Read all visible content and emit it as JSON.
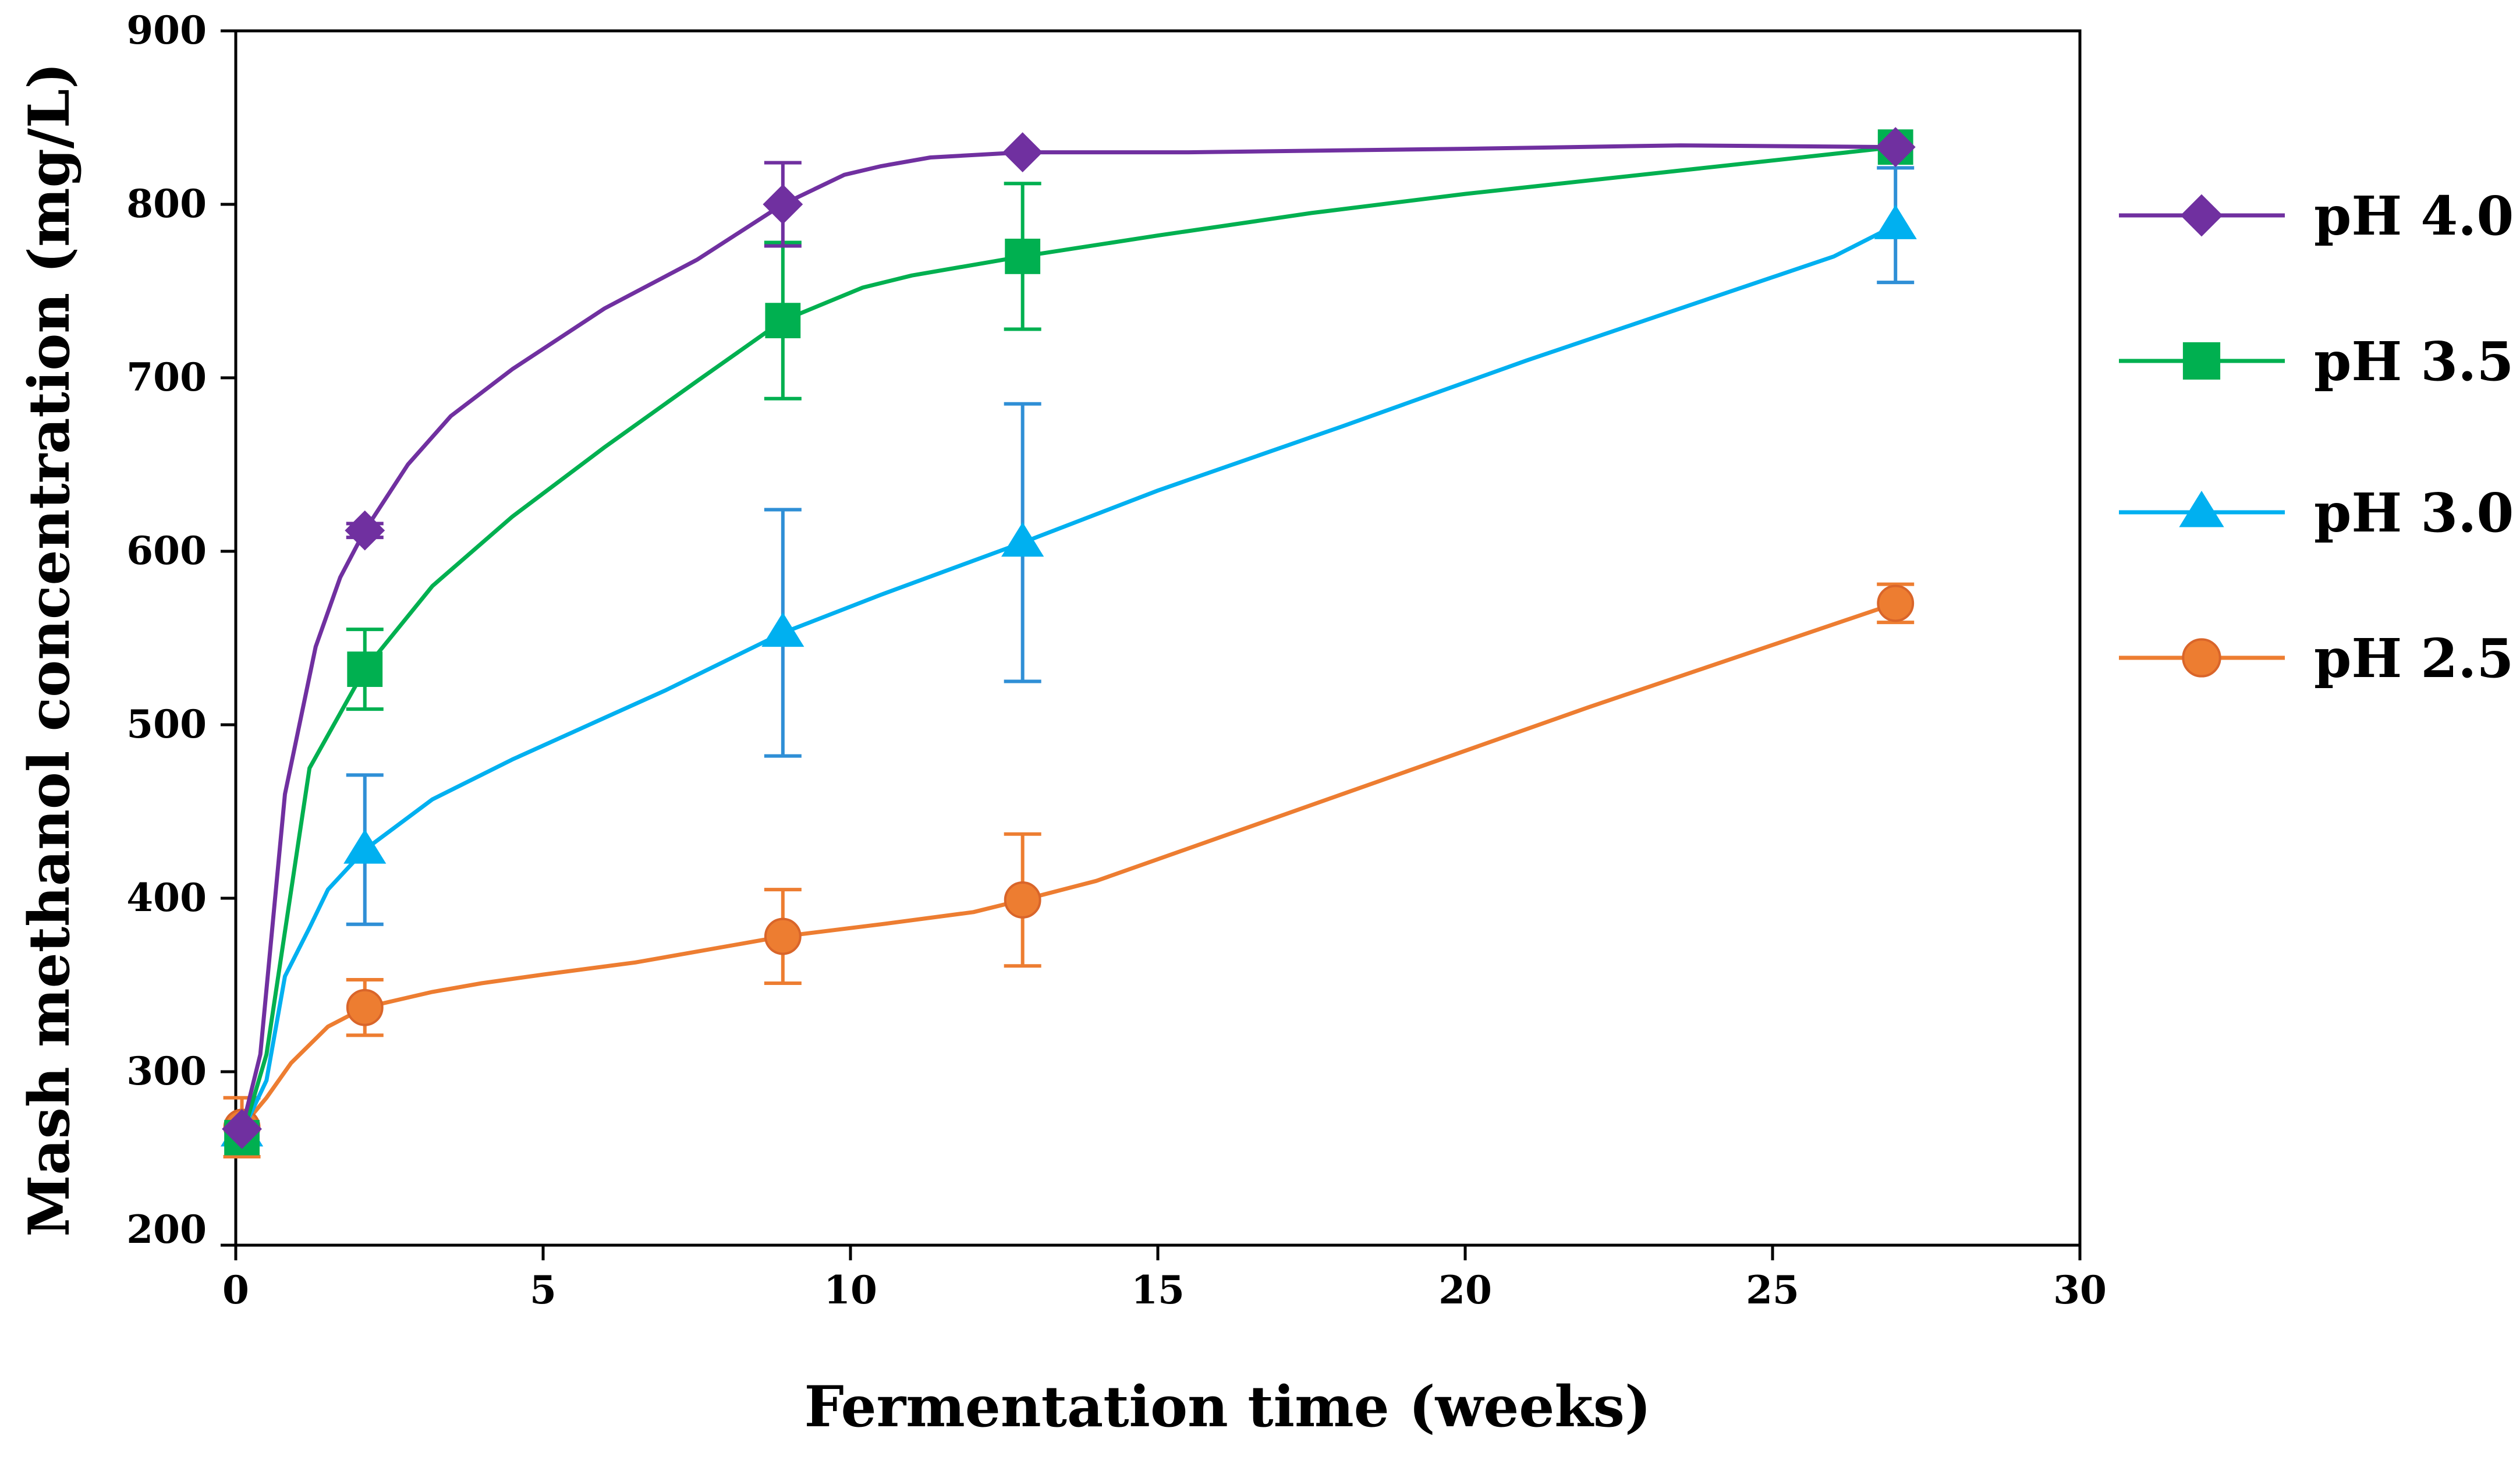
{
  "chart_data": {
    "type": "line",
    "title": "",
    "xlabel": "Fermentation time (weeks)",
    "ylabel": "Mash methanol concentration (mg/L)",
    "xlim": [
      0,
      30
    ],
    "ylim": [
      200,
      900
    ],
    "xticks": [
      0,
      5,
      10,
      15,
      20,
      25,
      30
    ],
    "yticks": [
      200,
      300,
      400,
      500,
      600,
      700,
      800,
      900
    ],
    "grid": false,
    "legend_position": "right",
    "series": [
      {
        "name": "pH 4.0",
        "color": "#7030a0",
        "marker": "diamond",
        "points": [
          [
            0.1,
            267
          ],
          [
            2.1,
            612
          ],
          [
            8.9,
            800
          ],
          [
            12.8,
            830
          ],
          [
            27,
            833
          ]
        ],
        "errors": [
          0,
          4,
          24,
          0,
          0
        ],
        "curve": [
          [
            0.1,
            267
          ],
          [
            0.4,
            310
          ],
          [
            0.8,
            460
          ],
          [
            1.3,
            545
          ],
          [
            1.7,
            585
          ],
          [
            2.1,
            612
          ],
          [
            2.8,
            650
          ],
          [
            3.5,
            678
          ],
          [
            4.5,
            705
          ],
          [
            6,
            740
          ],
          [
            7.5,
            768
          ],
          [
            8.9,
            800
          ],
          [
            9.9,
            817
          ],
          [
            10.5,
            822
          ],
          [
            11.3,
            827
          ],
          [
            12.8,
            830
          ],
          [
            15.5,
            830
          ],
          [
            20,
            832
          ],
          [
            23.5,
            834
          ],
          [
            27,
            833
          ]
        ]
      },
      {
        "name": "pH 3.5",
        "color": "#00b050",
        "marker": "square",
        "points": [
          [
            0.1,
            262
          ],
          [
            2.1,
            532
          ],
          [
            8.9,
            733
          ],
          [
            12.8,
            770
          ],
          [
            27,
            833
          ]
        ],
        "errors": [
          0,
          23,
          45,
          42,
          0
        ],
        "curve": [
          [
            0.1,
            262
          ],
          [
            0.5,
            310
          ],
          [
            1.2,
            475
          ],
          [
            2.1,
            532
          ],
          [
            3.2,
            580
          ],
          [
            4.5,
            620
          ],
          [
            6,
            660
          ],
          [
            7.5,
            698
          ],
          [
            8.9,
            733
          ],
          [
            10.2,
            752
          ],
          [
            11,
            759
          ],
          [
            12.8,
            770
          ],
          [
            15,
            782
          ],
          [
            17.5,
            795
          ],
          [
            20,
            806
          ],
          [
            27,
            833
          ]
        ]
      },
      {
        "name": "pH 3.0",
        "color": "#00b0f0",
        "marker": "triangle",
        "errorColor": "#2f8fd6",
        "points": [
          [
            0.1,
            265
          ],
          [
            2.1,
            428
          ],
          [
            8.9,
            553
          ],
          [
            12.8,
            605
          ],
          [
            27,
            788
          ]
        ],
        "errors": [
          0,
          43,
          71,
          80,
          33
        ],
        "curve": [
          [
            0.1,
            265
          ],
          [
            0.5,
            295
          ],
          [
            0.8,
            355
          ],
          [
            1.2,
            383
          ],
          [
            1.5,
            405
          ],
          [
            2.1,
            428
          ],
          [
            3.2,
            457
          ],
          [
            4.5,
            480
          ],
          [
            5.5,
            496
          ],
          [
            7,
            520
          ],
          [
            8.9,
            553
          ],
          [
            10.5,
            575
          ],
          [
            12.8,
            605
          ],
          [
            15,
            635
          ],
          [
            18,
            672
          ],
          [
            21,
            710
          ],
          [
            23.5,
            740
          ],
          [
            26,
            770
          ],
          [
            27,
            788
          ]
        ]
      },
      {
        "name": "pH 2.5",
        "color": "#ed7d31",
        "marker": "circle",
        "points": [
          [
            0.1,
            268
          ],
          [
            2.1,
            337
          ],
          [
            8.9,
            378
          ],
          [
            12.8,
            399
          ],
          [
            27,
            570
          ]
        ],
        "errors": [
          17,
          16,
          27,
          38,
          11
        ],
        "curve": [
          [
            0.1,
            268
          ],
          [
            0.5,
            285
          ],
          [
            0.9,
            305
          ],
          [
            1.5,
            326
          ],
          [
            2.1,
            337
          ],
          [
            3.2,
            346
          ],
          [
            4,
            351
          ],
          [
            5,
            356
          ],
          [
            6.5,
            363
          ],
          [
            8.9,
            378
          ],
          [
            10.5,
            385
          ],
          [
            12,
            392
          ],
          [
            12.8,
            399
          ],
          [
            14,
            410
          ],
          [
            18,
            460
          ],
          [
            22,
            510
          ],
          [
            27,
            570
          ]
        ]
      }
    ]
  }
}
